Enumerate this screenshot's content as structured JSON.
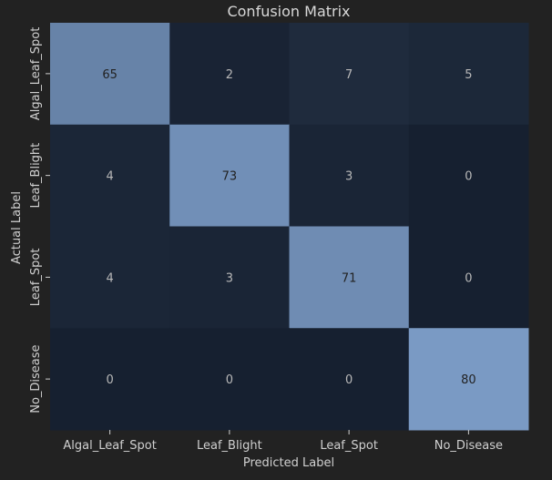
{
  "chart_data": {
    "type": "heatmap",
    "title": "Confusion Matrix",
    "xlabel": "Predicted Label",
    "ylabel": "Actual Label",
    "x_categories": [
      "Algal_Leaf_Spot",
      "Leaf_Blight",
      "Leaf_Spot",
      "No_Disease"
    ],
    "y_categories": [
      "Algal_Leaf_Spot",
      "Leaf_Blight",
      "Leaf_Spot",
      "No_Disease"
    ],
    "values": [
      [
        65,
        2,
        7,
        5
      ],
      [
        4,
        73,
        3,
        0
      ],
      [
        4,
        3,
        71,
        0
      ],
      [
        0,
        0,
        0,
        80
      ]
    ],
    "value_range": [
      0,
      80
    ],
    "colorbar": false,
    "grid": false
  },
  "colors": {
    "background": "#222222",
    "low": "#162030",
    "high": "#7a9ac4",
    "text_light": "#b8b8b8",
    "text_dark": "#222222",
    "label": "#d0d0d0"
  }
}
